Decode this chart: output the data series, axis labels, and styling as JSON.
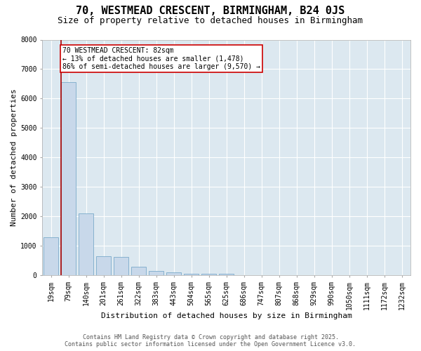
{
  "title": "70, WESTMEAD CRESCENT, BIRMINGHAM, B24 0JS",
  "subtitle": "Size of property relative to detached houses in Birmingham",
  "xlabel": "Distribution of detached houses by size in Birmingham",
  "ylabel": "Number of detached properties",
  "bar_color": "#c8d8ea",
  "bar_edge_color": "#7aaaca",
  "categories": [
    "19sqm",
    "79sqm",
    "140sqm",
    "201sqm",
    "261sqm",
    "322sqm",
    "383sqm",
    "443sqm",
    "504sqm",
    "565sqm",
    "625sqm",
    "686sqm",
    "747sqm",
    "807sqm",
    "868sqm",
    "929sqm",
    "990sqm",
    "1050sqm",
    "1111sqm",
    "1172sqm",
    "1232sqm"
  ],
  "values": [
    1300,
    6550,
    2100,
    650,
    620,
    290,
    140,
    90,
    55,
    45,
    50,
    0,
    0,
    0,
    0,
    0,
    0,
    0,
    0,
    0,
    0
  ],
  "property_bar_index": 1,
  "annotation_text": "70 WESTMEAD CRESCENT: 82sqm\n← 13% of detached houses are smaller (1,478)\n86% of semi-detached houses are larger (9,570) →",
  "annotation_box_color": "#cc0000",
  "red_line_color": "#aa0000",
  "plot_bg_color": "#dce8f0",
  "fig_bg_color": "#ffffff",
  "grid_color": "#ffffff",
  "footer_line1": "Contains HM Land Registry data © Crown copyright and database right 2025.",
  "footer_line2": "Contains public sector information licensed under the Open Government Licence v3.0.",
  "ylim": [
    0,
    8000
  ],
  "yticks": [
    0,
    1000,
    2000,
    3000,
    4000,
    5000,
    6000,
    7000,
    8000
  ],
  "title_fontsize": 11,
  "subtitle_fontsize": 9,
  "tick_fontsize": 7,
  "axis_label_fontsize": 8,
  "annotation_fontsize": 7,
  "footer_fontsize": 6
}
